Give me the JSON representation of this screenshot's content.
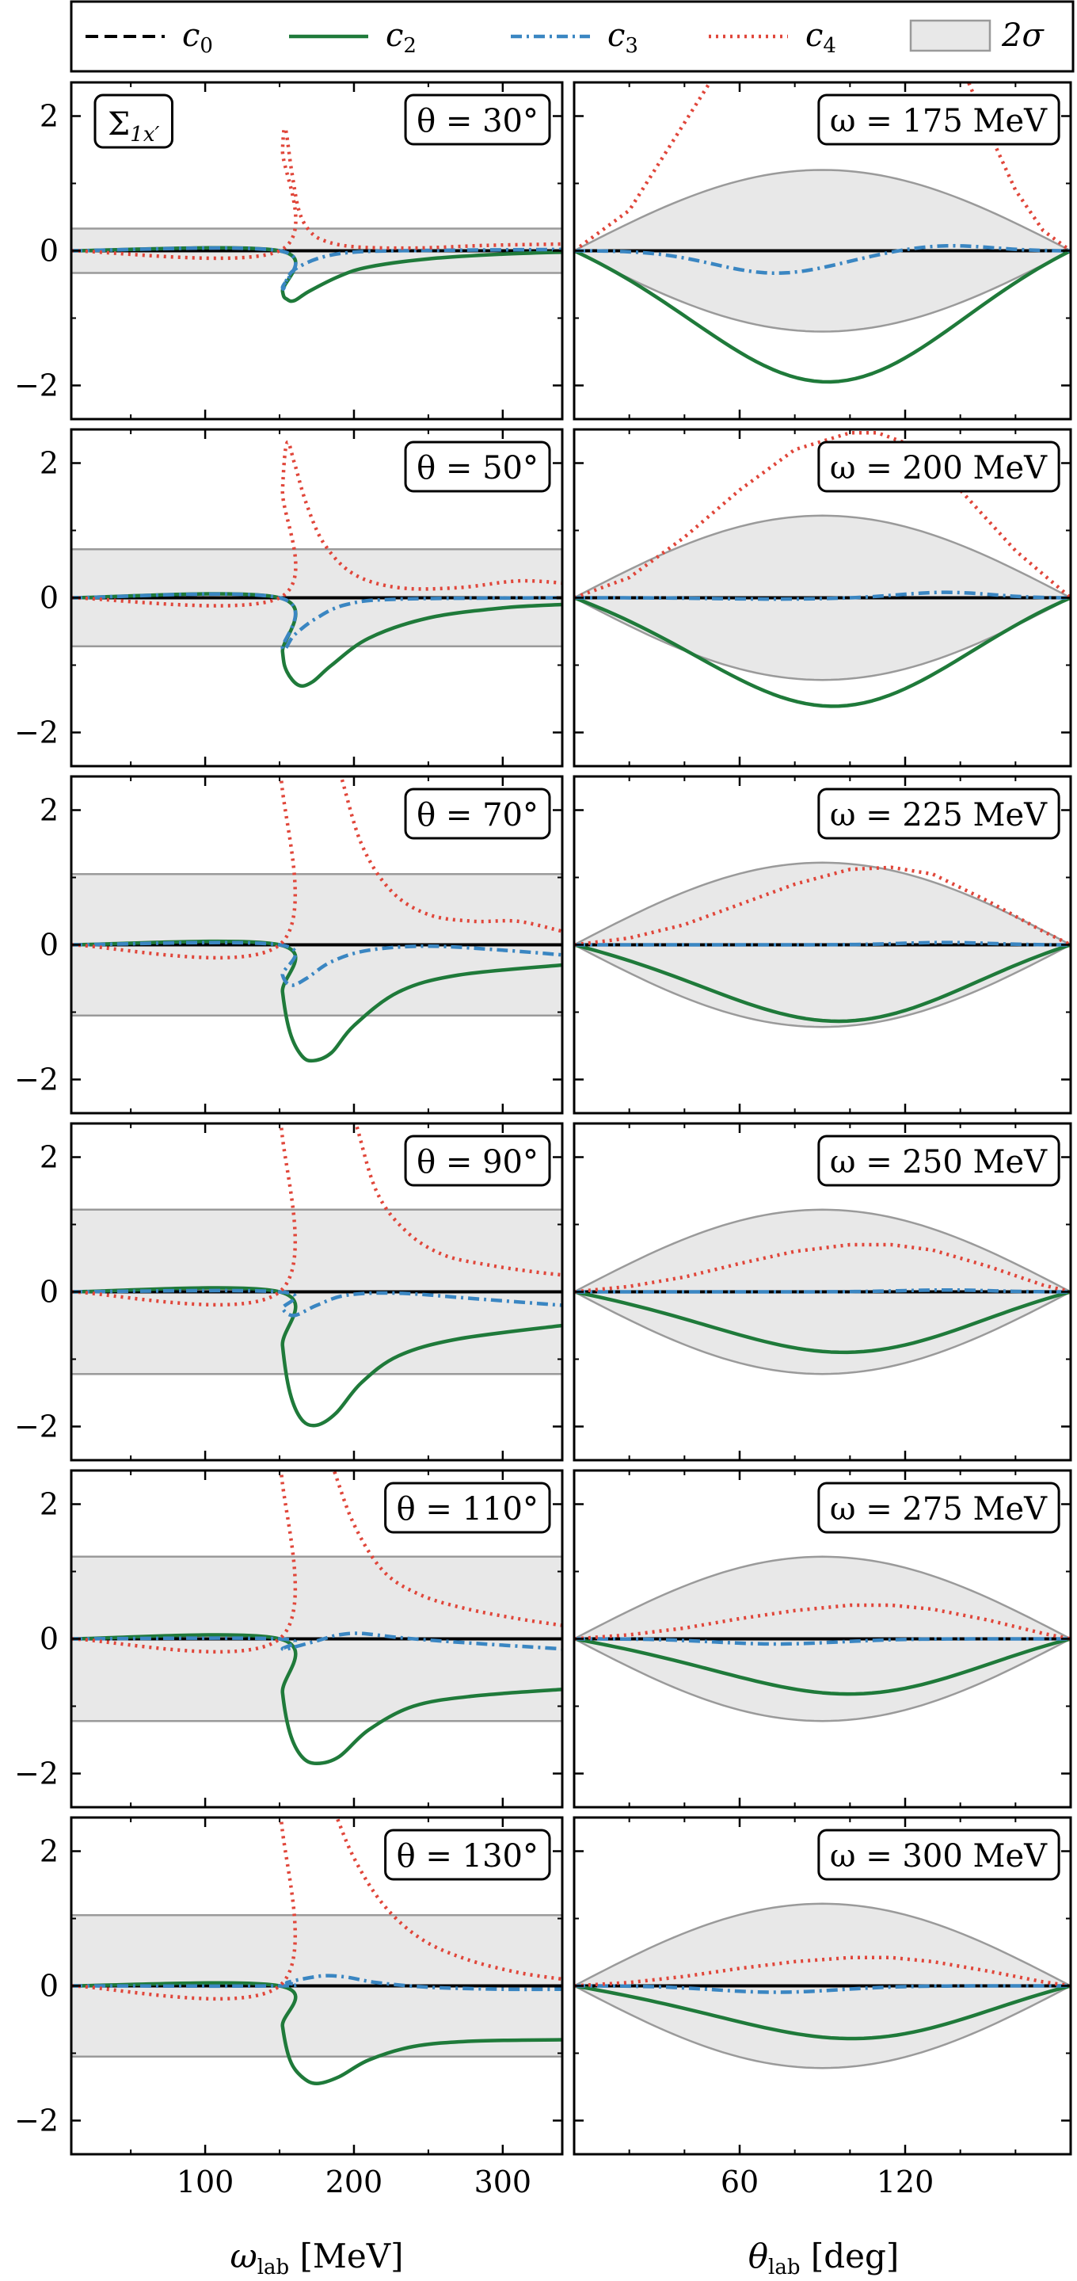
{
  "colors": {
    "c0": "#000000",
    "c2": "#1f7a3a",
    "c3": "#3a86c2",
    "c4": "#e0463a",
    "band_fill": "#e8e8e8",
    "band_edge": "#9a9a9a"
  },
  "legend": {
    "entries": [
      {
        "key": "c0",
        "label": "c0",
        "style": "dashed"
      },
      {
        "key": "c2",
        "label": "c2",
        "style": "solid"
      },
      {
        "key": "c3",
        "label": "c3",
        "style": "dashdot"
      },
      {
        "key": "c4",
        "label": "c4",
        "style": "dotted"
      }
    ],
    "band_label": "2σ"
  },
  "observable_label": "Σ1x′",
  "chart_data": {
    "type": "line",
    "layout": "grid 6 rows x 2 columns, shared y axis per row",
    "ylim": [
      -2.5,
      2.5
    ],
    "yticks": [
      -2,
      0,
      2
    ],
    "ytick_labels": [
      "−2",
      "0",
      "2"
    ],
    "left_column": {
      "xlabel": "ωlab [MeV]",
      "xlim": [
        10,
        340
      ],
      "xticks": [
        100,
        200,
        300
      ],
      "xtick_labels": [
        "100",
        "200",
        "300"
      ],
      "panels": [
        {
          "label": "θ = 30°",
          "band": 0.33,
          "series": [
            {
              "name": "c2",
              "x": [
                10,
                150,
                152,
                155,
                160,
                170,
                190,
                210,
                250,
                300,
                340
              ],
              "y": [
                0,
                0,
                -0.6,
                -0.72,
                -0.74,
                -0.6,
                -0.38,
                -0.24,
                -0.12,
                -0.05,
                -0.02
              ]
            },
            {
              "name": "c3",
              "x": [
                10,
                150,
                152,
                155,
                160,
                175,
                195,
                230,
                340
              ],
              "y": [
                0,
                0,
                -0.55,
                -0.42,
                -0.28,
                -0.12,
                -0.03,
                0.0,
                0.02
              ]
            },
            {
              "name": "c4",
              "x": [
                10,
                150,
                152,
                154,
                158,
                163,
                170,
                180,
                200,
                240,
                290,
                340
              ],
              "y": [
                0,
                0,
                1.5,
                1.8,
                1.2,
                0.6,
                0.3,
                0.15,
                0.06,
                0.04,
                0.08,
                0.1
              ]
            }
          ]
        },
        {
          "label": "θ = 50°",
          "band": 0.72,
          "series": [
            {
              "name": "c2",
              "x": [
                10,
                150,
                152,
                155,
                163,
                172,
                185,
                210,
                250,
                300,
                340
              ],
              "y": [
                0,
                0,
                -0.8,
                -1.1,
                -1.3,
                -1.25,
                -1.0,
                -0.6,
                -0.3,
                -0.15,
                -0.1
              ]
            },
            {
              "name": "c3",
              "x": [
                10,
                150,
                152,
                160,
                175,
                195,
                230,
                340
              ],
              "y": [
                0,
                0,
                -0.75,
                -0.55,
                -0.3,
                -0.1,
                -0.02,
                0.0
              ]
            },
            {
              "name": "c4",
              "x": [
                10,
                150,
                152,
                155,
                160,
                168,
                180,
                200,
                230,
                270,
                310,
                340
              ],
              "y": [
                0,
                0,
                1.6,
                2.3,
                2.0,
                1.4,
                0.8,
                0.35,
                0.15,
                0.15,
                0.25,
                0.22
              ]
            }
          ]
        },
        {
          "label": "θ = 70°",
          "band": 1.05,
          "series": [
            {
              "name": "c2",
              "x": [
                10,
                150,
                152,
                157,
                165,
                173,
                185,
                200,
                230,
                270,
                340
              ],
              "y": [
                0,
                0,
                -0.7,
                -1.3,
                -1.65,
                -1.72,
                -1.6,
                -1.2,
                -0.7,
                -0.45,
                -0.3
              ]
            },
            {
              "name": "c3",
              "x": [
                10,
                150,
                152,
                158,
                168,
                185,
                210,
                250,
                300,
                340
              ],
              "y": [
                0,
                0,
                -0.45,
                -0.6,
                -0.5,
                -0.25,
                -0.08,
                -0.02,
                -0.08,
                -0.15
              ]
            },
            {
              "name": "c4",
              "x": [
                10,
                150,
                151,
                155,
                175,
                190,
                205,
                225,
                250,
                280,
                310,
                340
              ],
              "y": [
                0,
                0,
                2.6,
                3.5,
                3.6,
                2.6,
                1.5,
                0.8,
                0.45,
                0.35,
                0.35,
                0.2
              ]
            }
          ]
        },
        {
          "label": "θ = 90°",
          "band": 1.22,
          "series": [
            {
              "name": "c2",
              "x": [
                10,
                150,
                152,
                157,
                165,
                175,
                188,
                205,
                230,
                270,
                340
              ],
              "y": [
                0,
                0,
                -0.8,
                -1.5,
                -1.9,
                -1.98,
                -1.8,
                -1.35,
                -0.95,
                -0.7,
                -0.5
              ]
            },
            {
              "name": "c3",
              "x": [
                10,
                150,
                152,
                160,
                175,
                195,
                230,
                280,
                340
              ],
              "y": [
                0,
                0,
                -0.25,
                -0.35,
                -0.2,
                -0.05,
                -0.02,
                -0.1,
                -0.2
              ]
            },
            {
              "name": "c4",
              "x": [
                10,
                150,
                151,
                155,
                185,
                200,
                215,
                235,
                260,
                290,
                320,
                340
              ],
              "y": [
                0,
                0,
                2.6,
                3.5,
                3.6,
                2.6,
                1.5,
                0.9,
                0.55,
                0.4,
                0.3,
                0.25
              ]
            }
          ]
        },
        {
          "label": "θ = 110°",
          "band": 1.22,
          "series": [
            {
              "name": "c2",
              "x": [
                10,
                150,
                152,
                157,
                165,
                175,
                190,
                210,
                240,
                280,
                340
              ],
              "y": [
                0,
                0,
                -0.8,
                -1.4,
                -1.75,
                -1.85,
                -1.75,
                -1.35,
                -1.0,
                -0.85,
                -0.75
              ]
            },
            {
              "name": "c3",
              "x": [
                10,
                150,
                152,
                160,
                175,
                190,
                205,
                230,
                270,
                340
              ],
              "y": [
                0,
                0,
                -0.15,
                -0.12,
                -0.03,
                0.06,
                0.08,
                0.02,
                -0.05,
                -0.15
              ]
            },
            {
              "name": "c4",
              "x": [
                10,
                150,
                151,
                154,
                170,
                185,
                200,
                220,
                245,
                275,
                310,
                340
              ],
              "y": [
                0,
                0,
                2.6,
                3.4,
                3.5,
                2.6,
                1.7,
                1.0,
                0.65,
                0.45,
                0.3,
                0.2
              ]
            }
          ]
        },
        {
          "label": "θ = 130°",
          "band": 1.05,
          "series": [
            {
              "name": "c2",
              "x": [
                10,
                150,
                152,
                157,
                165,
                175,
                190,
                210,
                240,
                280,
                340
              ],
              "y": [
                0,
                0,
                -0.6,
                -1.1,
                -1.35,
                -1.45,
                -1.35,
                -1.1,
                -0.9,
                -0.82,
                -0.8
              ]
            },
            {
              "name": "c3",
              "x": [
                10,
                150,
                155,
                165,
                180,
                195,
                215,
                250,
                300,
                340
              ],
              "y": [
                0,
                0,
                0.05,
                0.1,
                0.15,
                0.13,
                0.05,
                -0.02,
                -0.05,
                -0.05
              ]
            },
            {
              "name": "c4",
              "x": [
                10,
                150,
                151,
                155,
                170,
                185,
                200,
                220,
                245,
                275,
                310,
                340
              ],
              "y": [
                0,
                0,
                2.6,
                3.4,
                3.5,
                2.7,
                1.9,
                1.2,
                0.7,
                0.4,
                0.2,
                0.1
              ]
            }
          ]
        }
      ]
    },
    "right_column": {
      "xlabel": "θlab [deg]",
      "xlim": [
        0,
        180
      ],
      "xticks": [
        60,
        120
      ],
      "xtick_labels": [
        "60",
        "120"
      ],
      "panels": [
        {
          "label": "ω = 175 MeV",
          "band_max": 1.2,
          "c2_min": -1.95,
          "c2_peak": 95,
          "c3_amp": -0.35,
          "c3_amp2": 0.12,
          "series": [
            {
              "name": "c4",
              "x": [
                0,
                20,
                40,
                60,
                80,
                100,
                120,
                140,
                150,
                160,
                170,
                180
              ],
              "y": [
                0,
                0.6,
                1.9,
                3.2,
                4.2,
                4.5,
                4.0,
                2.8,
                1.8,
                0.9,
                0.3,
                0
              ]
            }
          ]
        },
        {
          "label": "ω = 200 MeV",
          "band_max": 1.22,
          "c2_min": -1.62,
          "c2_peak": 100,
          "c3_amp": -0.02,
          "c3_amp2": 0.12,
          "series": [
            {
              "name": "c4",
              "x": [
                0,
                20,
                40,
                60,
                80,
                100,
                110,
                120,
                140,
                160,
                180
              ],
              "y": [
                0,
                0.3,
                0.9,
                1.6,
                2.2,
                2.45,
                2.45,
                2.3,
                1.6,
                0.7,
                0
              ]
            }
          ]
        },
        {
          "label": "ω = 225 MeV",
          "band_max": 1.22,
          "c2_min": -1.15,
          "c2_peak": 105,
          "c3_amp": 0.0,
          "c3_amp2": 0.05,
          "series": [
            {
              "name": "c4",
              "x": [
                0,
                20,
                40,
                60,
                80,
                100,
                115,
                130,
                150,
                170,
                180
              ],
              "y": [
                0,
                0.1,
                0.3,
                0.6,
                0.9,
                1.12,
                1.15,
                1.05,
                0.65,
                0.2,
                0
              ]
            }
          ]
        },
        {
          "label": "ω = 250 MeV",
          "band_max": 1.22,
          "c2_min": -0.92,
          "c2_peak": 110,
          "c3_amp": 0.0,
          "c3_amp2": 0.04,
          "series": [
            {
              "name": "c4",
              "x": [
                0,
                20,
                40,
                60,
                80,
                100,
                115,
                130,
                150,
                170,
                180
              ],
              "y": [
                0,
                0.08,
                0.22,
                0.42,
                0.6,
                0.7,
                0.7,
                0.62,
                0.38,
                0.1,
                0
              ]
            }
          ]
        },
        {
          "label": "ω = 275 MeV",
          "band_max": 1.22,
          "c2_min": -0.85,
          "c2_peak": 115,
          "c3_amp": -0.08,
          "c3_amp2": 0.0,
          "series": [
            {
              "name": "c4",
              "x": [
                0,
                20,
                40,
                60,
                80,
                100,
                115,
                130,
                150,
                170,
                180
              ],
              "y": [
                0,
                0.06,
                0.16,
                0.3,
                0.42,
                0.5,
                0.5,
                0.44,
                0.28,
                0.08,
                0
              ]
            }
          ]
        },
        {
          "label": "ω = 300 MeV",
          "band_max": 1.22,
          "c2_min": -0.82,
          "c2_peak": 118,
          "c3_amp": -0.1,
          "c3_amp2": 0.0,
          "series": [
            {
              "name": "c4",
              "x": [
                0,
                20,
                40,
                60,
                80,
                100,
                115,
                130,
                150,
                170,
                180
              ],
              "y": [
                0,
                0.05,
                0.14,
                0.26,
                0.36,
                0.42,
                0.42,
                0.36,
                0.22,
                0.06,
                0
              ]
            }
          ]
        }
      ]
    }
  }
}
